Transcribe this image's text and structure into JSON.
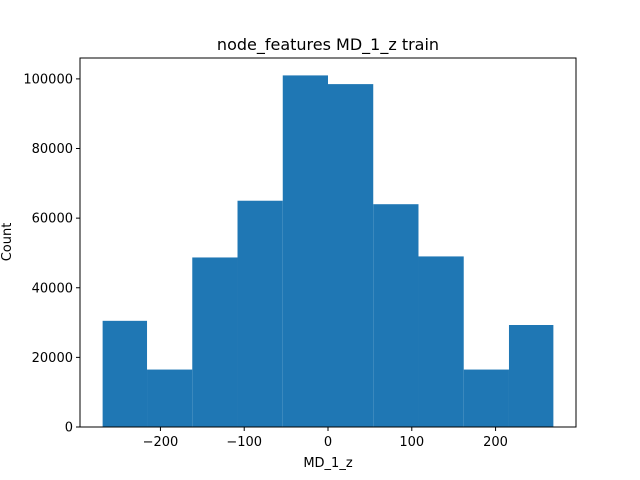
{
  "chart_data": {
    "type": "bar",
    "title": "node_features MD_1_z train",
    "xlabel": "MD_1_z",
    "ylabel": "Count",
    "bin_edges": [
      -269,
      -216,
      -162,
      -108,
      -54,
      0,
      54,
      108,
      162,
      216,
      269
    ],
    "counts": [
      30500,
      16500,
      48700,
      65000,
      101000,
      98500,
      64000,
      49000,
      16500,
      29300
    ],
    "xlim": [
      -296,
      296
    ],
    "ylim": [
      0,
      106000
    ],
    "xticks": [
      -200,
      -100,
      0,
      100,
      200
    ],
    "xtick_labels": [
      "−200",
      "−100",
      "0",
      "100",
      "200"
    ],
    "yticks": [
      0,
      20000,
      40000,
      60000,
      80000,
      100000
    ],
    "ytick_labels": [
      "0",
      "20000",
      "40000",
      "60000",
      "80000",
      "100000"
    ],
    "bar_color": "#1f77b4",
    "grid": false,
    "legend": "none"
  }
}
